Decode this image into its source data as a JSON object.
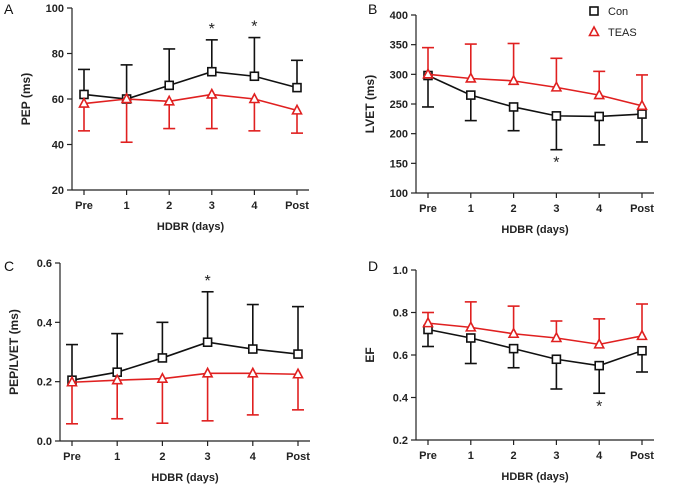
{
  "chart_data": [
    {
      "type": "line",
      "panel": "A",
      "xlabel": "HDBR (days)",
      "ylabel": "PEP (ms)",
      "categories": [
        "Pre",
        "1",
        "2",
        "3",
        "4",
        "Post"
      ],
      "ylim": [
        20,
        100
      ],
      "yticks": [
        "20",
        "40",
        "60",
        "80",
        "100"
      ],
      "series": [
        {
          "name": "Con",
          "color": "#111111",
          "marker": "square",
          "values": [
            62,
            60,
            66,
            72,
            70,
            65
          ],
          "err": [
            11,
            15,
            16,
            14,
            17,
            12
          ],
          "err_dir": "up"
        },
        {
          "name": "TEAS",
          "color": "#e02020",
          "marker": "triangle",
          "values": [
            58,
            60,
            59,
            62,
            60,
            55
          ],
          "err": [
            12,
            19,
            12,
            15,
            14,
            10
          ],
          "err_dir": "down"
        }
      ],
      "annotations": [
        {
          "text": "*",
          "category": "3"
        },
        {
          "text": "*",
          "category": "4"
        }
      ]
    },
    {
      "type": "line",
      "panel": "B",
      "xlabel": "HDBR (days)",
      "ylabel": "LVET (ms)",
      "categories": [
        "Pre",
        "1",
        "2",
        "3",
        "4",
        "Post"
      ],
      "ylim": [
        100,
        400
      ],
      "yticks": [
        "100",
        "150",
        "200",
        "250",
        "300",
        "350",
        "400"
      ],
      "series": [
        {
          "name": "Con",
          "color": "#111111",
          "marker": "square",
          "values": [
            298,
            265,
            245,
            230,
            229,
            233
          ],
          "err": [
            53,
            43,
            40,
            57,
            48,
            47
          ],
          "err_dir": "down"
        },
        {
          "name": "TEAS",
          "color": "#e02020",
          "marker": "triangle",
          "values": [
            300,
            293,
            289,
            278,
            265,
            247
          ],
          "err": [
            45,
            58,
            63,
            49,
            40,
            52
          ],
          "err_dir": "up"
        }
      ],
      "annotations": [
        {
          "text": "*",
          "category": "3",
          "position": "below"
        }
      ],
      "legend": {
        "placement": "top-right",
        "entries": [
          "Con",
          "TEAS"
        ]
      }
    },
    {
      "type": "line",
      "panel": "C",
      "xlabel": "HDBR (days)",
      "ylabel": "PEP/LVET (ms)",
      "categories": [
        "Pre",
        "1",
        "2",
        "3",
        "4",
        "Post"
      ],
      "ylim": [
        0.0,
        0.6
      ],
      "yticks": [
        "0.0",
        "0.2",
        "0.4",
        "0.6"
      ],
      "series": [
        {
          "name": "Con",
          "color": "#111111",
          "marker": "square",
          "values": [
            0.205,
            0.232,
            0.28,
            0.333,
            0.31,
            0.293
          ],
          "err": [
            0.12,
            0.13,
            0.12,
            0.17,
            0.15,
            0.16
          ],
          "err_dir": "up"
        },
        {
          "name": "TEAS",
          "color": "#e02020",
          "marker": "triangle",
          "values": [
            0.198,
            0.205,
            0.21,
            0.228,
            0.228,
            0.225
          ],
          "err": [
            0.14,
            0.13,
            0.15,
            0.16,
            0.14,
            0.12
          ],
          "err_dir": "down"
        }
      ],
      "annotations": [
        {
          "text": "*",
          "category": "3"
        }
      ]
    },
    {
      "type": "line",
      "panel": "D",
      "xlabel": "HDBR (days)",
      "ylabel": "EF",
      "categories": [
        "Pre",
        "1",
        "2",
        "3",
        "4",
        "Post"
      ],
      "ylim": [
        0.2,
        1.0
      ],
      "yticks": [
        "0.2",
        "0.4",
        "0.6",
        "0.8",
        "1.0"
      ],
      "series": [
        {
          "name": "Con",
          "color": "#111111",
          "marker": "square",
          "values": [
            0.72,
            0.68,
            0.63,
            0.58,
            0.55,
            0.62
          ],
          "err": [
            0.08,
            0.12,
            0.09,
            0.14,
            0.13,
            0.1
          ],
          "err_dir": "down"
        },
        {
          "name": "TEAS",
          "color": "#e02020",
          "marker": "triangle",
          "values": [
            0.75,
            0.73,
            0.7,
            0.68,
            0.65,
            0.69
          ],
          "err": [
            0.05,
            0.12,
            0.13,
            0.08,
            0.12,
            0.15
          ],
          "err_dir": "up"
        }
      ],
      "annotations": [
        {
          "text": "*",
          "category": "4",
          "position": "below"
        }
      ]
    }
  ]
}
